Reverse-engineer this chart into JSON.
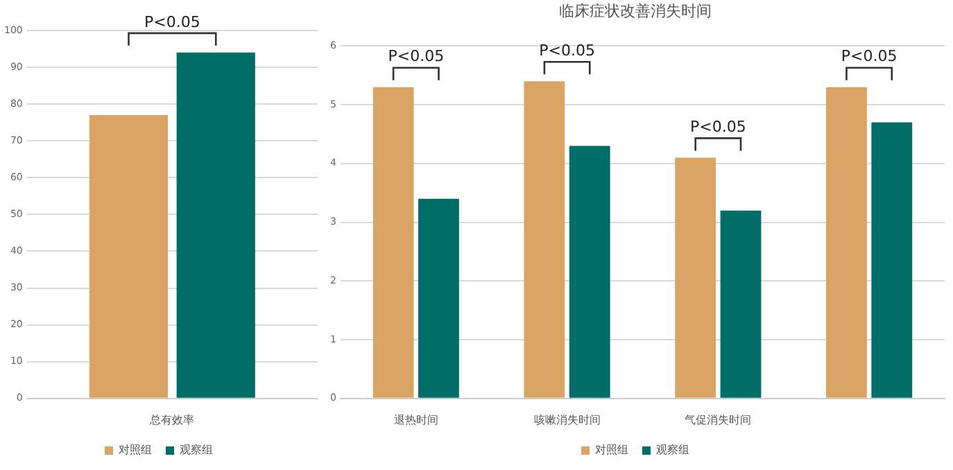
{
  "chart_data": [
    {
      "type": "bar",
      "categories": [
        "总有效率"
      ],
      "series": [
        {
          "name": "对照组",
          "color": "#d9a464",
          "values": [
            77
          ]
        },
        {
          "name": "观察组",
          "color": "#006d66",
          "values": [
            94
          ]
        }
      ],
      "ylim": [
        0,
        100
      ],
      "yticks": [
        0,
        10,
        20,
        30,
        40,
        50,
        60,
        70,
        80,
        90,
        100
      ],
      "grid": "y",
      "legend": "bottom",
      "annotations": [
        "P<0.05"
      ]
    },
    {
      "type": "bar",
      "title": "临床症状改善消失时间",
      "categories": [
        "退热时间",
        "咳嗽消失时间",
        "气促消失时间",
        null
      ],
      "series": [
        {
          "name": "对照组",
          "color": "#d9a464",
          "values": [
            5.3,
            5.4,
            4.1,
            5.3
          ]
        },
        {
          "name": "观察组",
          "color": "#006d66",
          "values": [
            3.4,
            4.3,
            3.2,
            4.7
          ]
        }
      ],
      "ylim": [
        0,
        6
      ],
      "yticks": [
        0,
        1,
        2,
        3,
        4,
        5,
        6
      ],
      "grid": "y",
      "legend": "bottom",
      "annotations": [
        "P<0.05",
        "P<0.05",
        "P<0.05",
        "P<0.05"
      ]
    }
  ]
}
